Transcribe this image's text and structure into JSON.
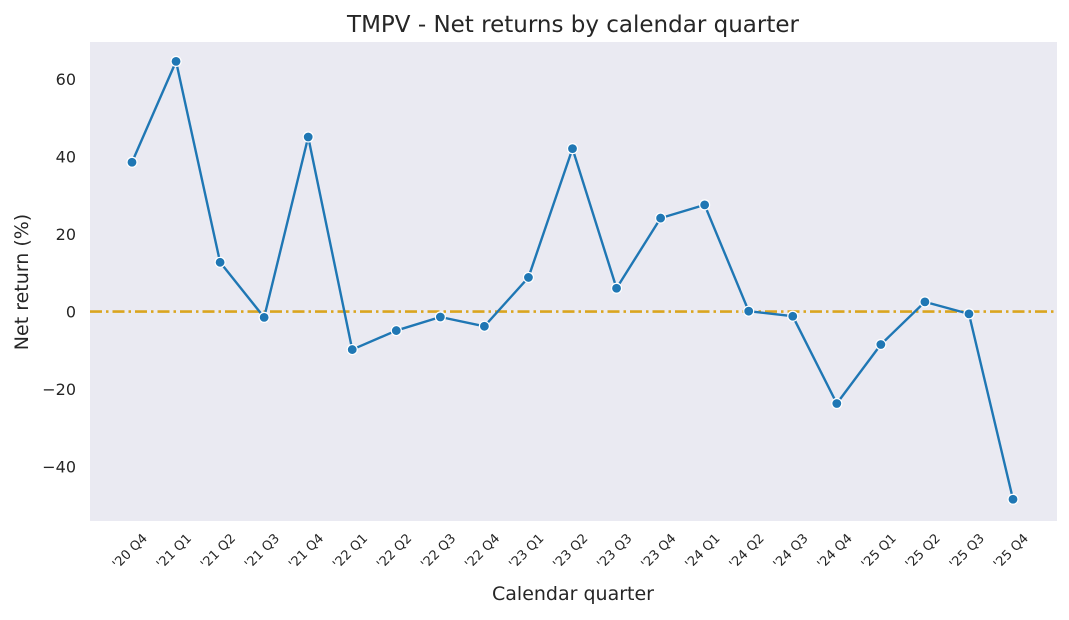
{
  "chart_data": {
    "type": "line",
    "title": "TMPV - Net returns by calendar quarter",
    "xlabel": "Calendar quarter",
    "ylabel": "Net return (%)",
    "categories": [
      "'20 Q4",
      "'21 Q1",
      "'21 Q2",
      "'21 Q3",
      "'21 Q4",
      "'22 Q1",
      "'22 Q2",
      "'22 Q3",
      "'22 Q4",
      "'23 Q1",
      "'23 Q2",
      "'23 Q3",
      "'23 Q4",
      "'24 Q1",
      "'24 Q2",
      "'24 Q3",
      "'24 Q4",
      "'25 Q1",
      "'25 Q2",
      "'25 Q3",
      "'25 Q4"
    ],
    "series": [
      {
        "values": [
          38.5,
          64.5,
          12.7,
          -1.5,
          45.0,
          -9.8,
          -4.9,
          -1.4,
          -3.8,
          8.8,
          42.0,
          6.0,
          24.1,
          27.5,
          0.1,
          -1.2,
          -23.7,
          -8.5,
          2.5,
          -0.6,
          -48.4
        ],
        "color": "#1f77b4"
      }
    ],
    "reference_line": {
      "y": 0,
      "style": "dash-dot",
      "color": "#daa520"
    },
    "yticks": [
      -40,
      -20,
      0,
      20,
      40,
      60
    ],
    "ytick_labels": [
      "−40",
      "−20",
      "0",
      "20",
      "40",
      "60"
    ],
    "ylim": [
      -54,
      69.5
    ],
    "grid": false,
    "background": "#eaeaf2"
  }
}
